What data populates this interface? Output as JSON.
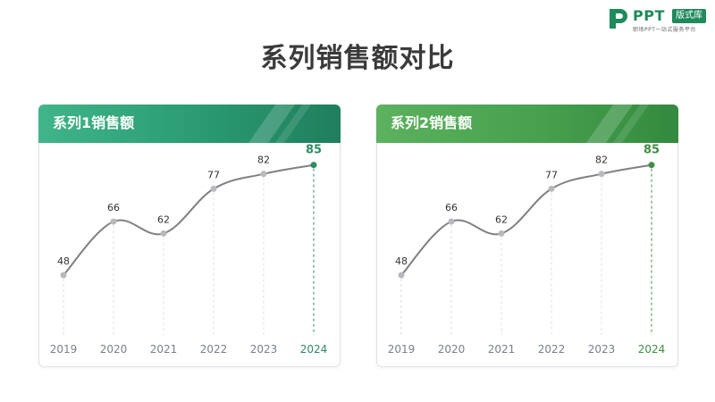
{
  "logo": {
    "brand": "PPT",
    "badge": "版式库",
    "tagline": "职场PPT一站式服务平台",
    "brand_color": "#1f8a5b"
  },
  "page": {
    "title": "系列销售额对比"
  },
  "colors": {
    "line": "#808080",
    "point": "#b7b9bd",
    "left_accent": "#2e8b62",
    "right_accent": "#3f8f45",
    "label": "#333333",
    "axis_label": "#7a7f8a"
  },
  "chart_data": [
    {
      "type": "line",
      "title": "系列1销售额",
      "categories": [
        "2019",
        "2020",
        "2021",
        "2022",
        "2023",
        "2024"
      ],
      "values": [
        48,
        66,
        62,
        77,
        82,
        85
      ],
      "highlight_index": 5,
      "ylim": [
        30,
        90
      ],
      "grid": false
    },
    {
      "type": "line",
      "title": "系列2销售额",
      "categories": [
        "2019",
        "2020",
        "2021",
        "2022",
        "2023",
        "2024"
      ],
      "values": [
        48,
        66,
        62,
        77,
        82,
        85
      ],
      "highlight_index": 5,
      "ylim": [
        30,
        90
      ],
      "grid": false
    }
  ]
}
